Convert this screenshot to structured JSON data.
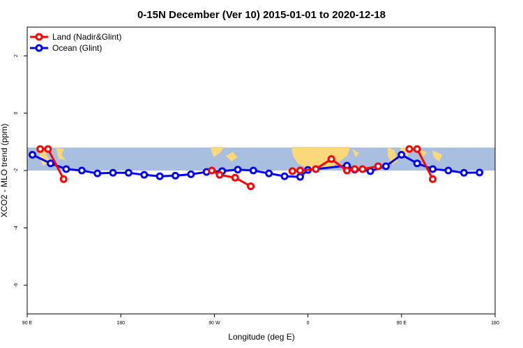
{
  "chart_data": {
    "type": "line",
    "title": "0-15N December (Ver 10)   2015-01-01 to 2020-12-18",
    "xlabel": "Longitude (deg E)",
    "ylabel": "XCO2 - MLO trend (ppm)",
    "xlim": [
      90,
      540
    ],
    "ylim": [
      -7,
      3
    ],
    "x_ticks": [
      {
        "value": 90,
        "label": "90 E"
      },
      {
        "value": 180,
        "label": "180"
      },
      {
        "value": 270,
        "label": "90 W"
      },
      {
        "value": 360,
        "label": "0"
      },
      {
        "value": 450,
        "label": "90 E"
      },
      {
        "value": 540,
        "label": "180"
      }
    ],
    "y_ticks": [
      {
        "value": 2,
        "label": "2"
      },
      {
        "value": 0,
        "label": "0"
      },
      {
        "value": -2,
        "label": "-2"
      },
      {
        "value": -4,
        "label": "-4"
      },
      {
        "value": -6,
        "label": "-6"
      }
    ],
    "latitude_band": {
      "y_from": -2.0,
      "y_to": -1.2,
      "ocean_color": "#a8bfdf",
      "land_color": "#fcd87a"
    },
    "legend_position": "top-left",
    "series": [
      {
        "name": "Land (Nadir&Glint)",
        "color": "#ff0000",
        "segments": [
          [
            [
              102.5,
              -1.25
            ],
            [
              110,
              -1.25
            ],
            [
              125,
              -2.3
            ]
          ],
          [
            [
              267.5,
              -2.0
            ],
            [
              275,
              -2.15
            ],
            [
              290,
              -2.25
            ],
            [
              305,
              -2.55
            ]
          ],
          [
            [
              345,
              -2.02
            ],
            [
              352.5,
              -2.0
            ],
            [
              367.5,
              -1.95
            ],
            [
              382.5,
              -1.6
            ],
            [
              397.5,
              -2.0
            ],
            [
              405,
              -1.95
            ],
            [
              412.5,
              -1.95
            ],
            [
              427.5,
              -1.85
            ]
          ],
          [
            [
              457.5,
              -1.25
            ],
            [
              465,
              -1.25
            ],
            [
              480,
              -2.3
            ]
          ]
        ]
      },
      {
        "name": "Ocean (Glint)",
        "color": "#0000ff",
        "segments": [
          [
            [
              95,
              -1.45
            ],
            [
              112.5,
              -1.75
            ],
            [
              127.5,
              -1.95
            ],
            [
              142.5,
              -2.0
            ],
            [
              157.5,
              -2.1
            ],
            [
              172.5,
              -2.08
            ],
            [
              187.5,
              -2.08
            ],
            [
              202.5,
              -2.15
            ],
            [
              217.5,
              -2.2
            ],
            [
              232.5,
              -2.18
            ],
            [
              247.5,
              -2.13
            ],
            [
              262.5,
              -2.05
            ],
            [
              277.5,
              -2.02
            ],
            [
              292.5,
              -1.97
            ],
            [
              307.5,
              -2.0
            ],
            [
              322.5,
              -2.1
            ],
            [
              337.5,
              -2.2
            ],
            [
              352.5,
              -2.22
            ],
            [
              360,
              -1.98
            ],
            [
              397.5,
              -1.83
            ],
            [
              405,
              -1.97
            ],
            [
              420,
              -2.02
            ],
            [
              435,
              -1.85
            ],
            [
              450,
              -1.45
            ],
            [
              465,
              -1.75
            ],
            [
              480,
              -1.95
            ],
            [
              495,
              -2.0
            ],
            [
              510,
              -2.08
            ],
            [
              525,
              -2.07
            ]
          ]
        ]
      }
    ]
  }
}
